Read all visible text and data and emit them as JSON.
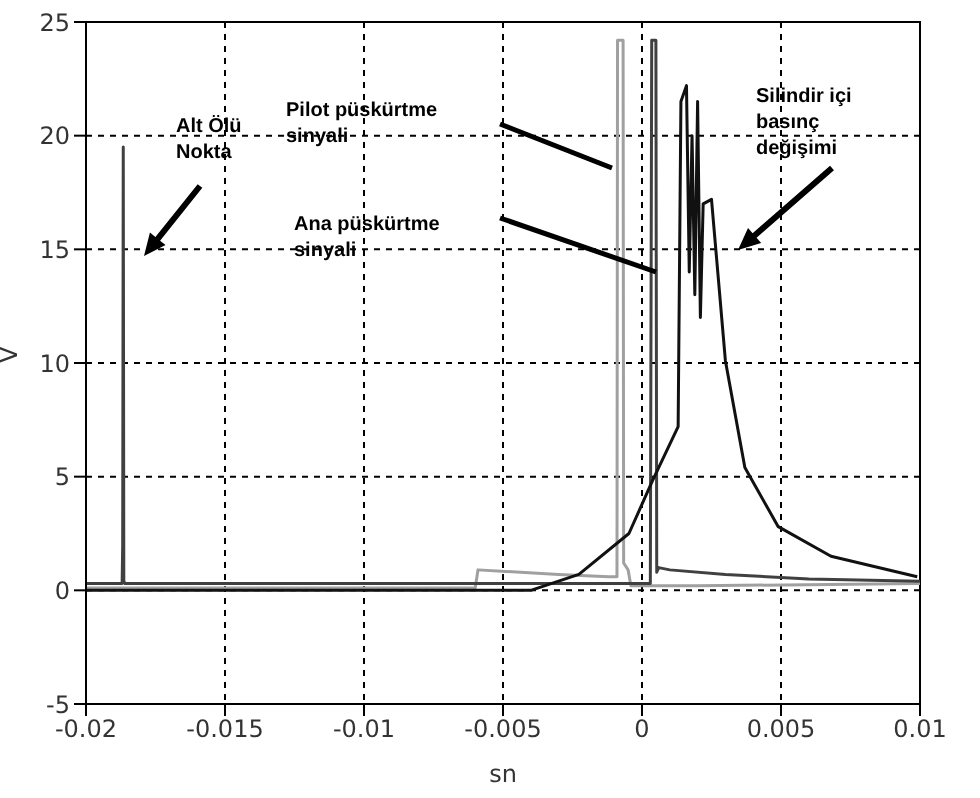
{
  "chart_data": {
    "type": "line",
    "xlabel": "sn",
    "ylabel": "V",
    "xlim": [
      -0.02,
      0.01
    ],
    "ylim": [
      -5,
      25
    ],
    "xticks": [
      -0.02,
      -0.015,
      -0.01,
      -0.005,
      0,
      0.005,
      0.01
    ],
    "yticks": [
      -5,
      0,
      5,
      10,
      15,
      20,
      25
    ],
    "grid": true,
    "marker": "none",
    "line_style": "solid",
    "series": [
      {
        "color": "#a0a0a0",
        "x": [
          -0.02,
          -0.006,
          -0.0059,
          -0.003,
          -0.0012,
          -0.0009,
          -0.00088,
          -0.00068,
          -0.00066,
          -0.0005,
          -0.0004,
          0.002,
          0.01
        ],
        "values": [
          0.1,
          0.1,
          0.9,
          0.7,
          0.6,
          0.6,
          24.2,
          24.2,
          1.2,
          0.9,
          0.2,
          0.2,
          0.3
        ]
      },
      {
        "color": "#404040",
        "x": [
          -0.02,
          -0.0187,
          -0.01868,
          -0.01866,
          -0.01864,
          -0.0186,
          0.0002,
          0.0003,
          0.00035,
          0.0005,
          0.00053,
          0.0006,
          0.001,
          0.003,
          0.006,
          0.01
        ],
        "values": [
          0.3,
          0.3,
          2,
          19.5,
          0.4,
          0.3,
          0.3,
          0.3,
          24.2,
          24.2,
          0.8,
          1.0,
          0.9,
          0.7,
          0.5,
          0.4
        ]
      },
      {
        "color": "#111111",
        "x": [
          -0.02,
          -0.004,
          -0.00227,
          -0.00047,
          0.00037,
          0.0013,
          0.0014,
          0.0016,
          0.0017,
          0.0018,
          0.0019,
          0.002,
          0.0021,
          0.0022,
          0.0025,
          0.003,
          0.0037,
          0.0049,
          0.0068,
          0.0099
        ],
        "values": [
          0,
          0,
          0.7,
          2.5,
          4.8,
          7.2,
          21.5,
          22.2,
          14,
          20,
          13,
          21.5,
          12,
          17,
          17.2,
          10.1,
          5.4,
          2.8,
          1.5,
          0.6
        ]
      }
    ],
    "annotations": [
      "Alt Ölü Nokta",
      "Pilot püskürtme sinyali",
      "Ana püskürtme sinyali",
      "Silindir içi basınç değişimi"
    ]
  }
}
